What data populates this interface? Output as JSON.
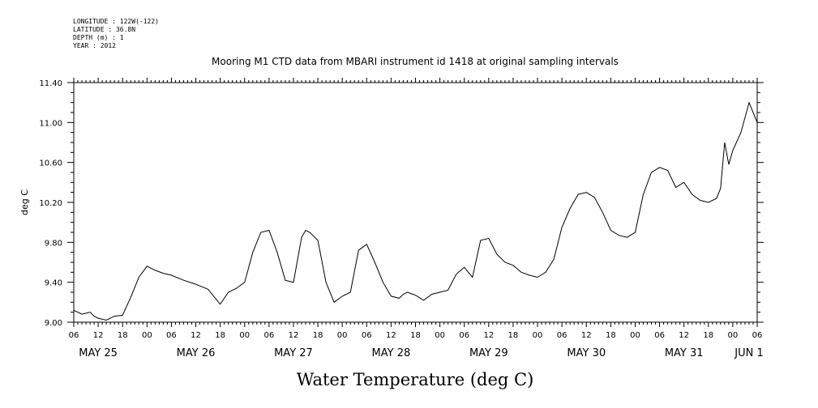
{
  "header": {
    "lines": [
      "LONGITUDE : 122W(-122)",
      "LATITUDE : 36.8N",
      "DEPTH (m) : 1",
      "YEAR : 2012"
    ]
  },
  "chart_data": {
    "type": "line",
    "title": "Mooring M1 CTD data from MBARI instrument id 1418 at original sampling intervals",
    "xlabel": "Water Temperature (deg C)",
    "ylabel": "deg C",
    "ylim": [
      9.0,
      11.4
    ],
    "yticks": [
      "9.00",
      "9.40",
      "9.80",
      "10.20",
      "10.60",
      "11.00",
      "11.40"
    ],
    "xlim_hours": [
      0,
      168
    ],
    "hour_tick_labels": [
      "06",
      "12",
      "18",
      "00",
      "06",
      "12",
      "18",
      "00",
      "06",
      "12",
      "18",
      "00",
      "06",
      "12",
      "18",
      "00",
      "06",
      "12",
      "18",
      "00",
      "06",
      "12",
      "18",
      "00",
      "06",
      "12",
      "18",
      "00",
      "06"
    ],
    "day_labels": [
      "MAY 25",
      "MAY 26",
      "MAY 27",
      "MAY 28",
      "MAY 29",
      "MAY 30",
      "MAY 31",
      "JUN  1"
    ],
    "grid": false,
    "series": [
      {
        "color": "#000000",
        "x": [
          0,
          2,
          4,
          5,
          6,
          8,
          10,
          12,
          14,
          16,
          18,
          20,
          22,
          24,
          27,
          30,
          33,
          36,
          38,
          40,
          42,
          44,
          46,
          48,
          50,
          52,
          54,
          56,
          57,
          58,
          60,
          62,
          64,
          66,
          68,
          70,
          72,
          74,
          76,
          78,
          80,
          81,
          82,
          84,
          86,
          88,
          90,
          92,
          94,
          96,
          98,
          100,
          102,
          104,
          106,
          108,
          110,
          112,
          114,
          116,
          118,
          120,
          122,
          124,
          126,
          128,
          130,
          132,
          134,
          136,
          138,
          140,
          142,
          144,
          146,
          148,
          150,
          152,
          154,
          156,
          158,
          159,
          160,
          161,
          162,
          164,
          166,
          167,
          168
        ],
        "y": [
          9.12,
          9.08,
          9.1,
          9.06,
          9.04,
          9.02,
          9.06,
          9.07,
          9.25,
          9.45,
          9.56,
          9.52,
          9.49,
          9.47,
          9.42,
          9.38,
          9.33,
          9.18,
          9.3,
          9.34,
          9.4,
          9.7,
          9.9,
          9.92,
          9.7,
          9.42,
          9.4,
          9.85,
          9.92,
          9.9,
          9.82,
          9.4,
          9.2,
          9.26,
          9.3,
          9.72,
          9.78,
          9.6,
          9.4,
          9.26,
          9.24,
          9.28,
          9.3,
          9.27,
          9.22,
          9.28,
          9.3,
          9.32,
          9.48,
          9.55,
          9.45,
          9.82,
          9.84,
          9.68,
          9.6,
          9.57,
          9.5,
          9.47,
          9.45,
          9.5,
          9.63,
          9.95,
          10.14,
          10.28,
          10.3,
          10.25,
          10.1,
          9.92,
          9.87,
          9.85,
          9.9,
          10.28,
          10.5,
          10.55,
          10.52,
          10.35,
          10.4,
          10.28,
          10.22,
          10.2,
          10.24,
          10.34,
          10.8,
          10.58,
          10.72,
          10.9,
          11.2,
          11.1,
          11.0
        ]
      }
    ]
  }
}
